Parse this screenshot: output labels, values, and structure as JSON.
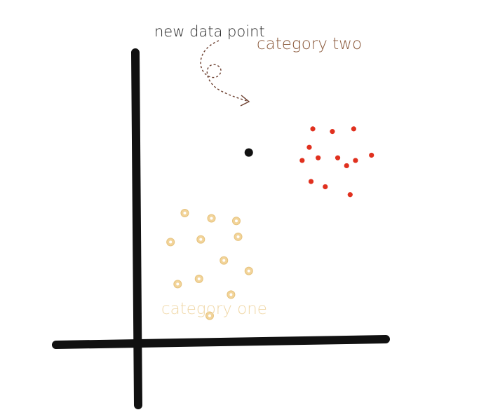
{
  "labels": {
    "new_point": "new data point",
    "category_two": "category two",
    "category_one": "category one"
  },
  "colors": {
    "axes": "#111111",
    "new_point": "#111111",
    "category_two_fill": "#e0301e",
    "category_two_text": "#8b5a3c",
    "category_one_fill": "#f2d49a",
    "category_one_ring": "#e6c27c",
    "category_one_text": "#f0d8a8",
    "arrow": "#6b3e2e",
    "label_dark": "#2a2a2a"
  },
  "chart_data": {
    "type": "scatter",
    "series": [
      {
        "name": "category two",
        "points": [
          [
            9.9,
            8.1
          ],
          [
            11.0,
            8.0
          ],
          [
            12.2,
            8.1
          ],
          [
            9.7,
            7.4
          ],
          [
            10.2,
            7.0
          ],
          [
            11.3,
            7.0
          ],
          [
            12.3,
            6.9
          ],
          [
            13.2,
            7.1
          ],
          [
            9.3,
            6.9
          ],
          [
            11.8,
            6.7
          ],
          [
            9.8,
            6.1
          ],
          [
            10.6,
            5.9
          ],
          [
            12.0,
            5.6
          ]
        ]
      },
      {
        "name": "category one",
        "points": [
          [
            2.7,
            4.9
          ],
          [
            4.2,
            4.7
          ],
          [
            5.6,
            4.6
          ],
          [
            1.9,
            3.8
          ],
          [
            3.6,
            3.9
          ],
          [
            5.7,
            4.0
          ],
          [
            4.9,
            3.1
          ],
          [
            6.3,
            2.7
          ],
          [
            2.3,
            2.2
          ],
          [
            3.5,
            2.4
          ],
          [
            5.3,
            1.8
          ],
          [
            4.1,
            1.0
          ]
        ]
      },
      {
        "name": "new data point",
        "points": [
          [
            6.3,
            7.2
          ]
        ]
      }
    ],
    "xlim": [
      0,
      14
    ],
    "ylim": [
      0,
      11
    ]
  }
}
